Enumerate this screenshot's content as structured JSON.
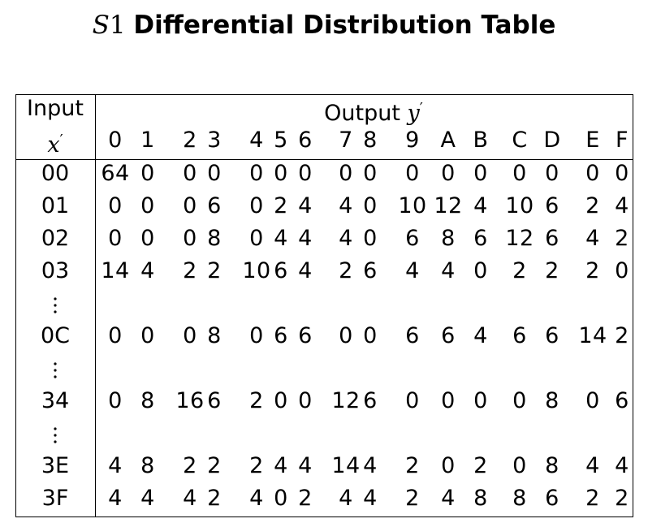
{
  "title": {
    "var": "S",
    "num": "1",
    "text": "Differential Distribution Table"
  },
  "header": {
    "input_label": "Input",
    "input_var": "x",
    "output_label": "Output",
    "output_var": "y",
    "prime": "′",
    "columns": [
      "0",
      "1",
      "2",
      "3",
      "4",
      "5",
      "6",
      "7",
      "8",
      "9",
      "A",
      "B",
      "C",
      "D",
      "E",
      "F"
    ]
  },
  "rows": [
    {
      "label": "00",
      "values": [
        "64",
        "0",
        "0",
        "0",
        "0",
        "0",
        "0",
        "0",
        "0",
        "0",
        "0",
        "0",
        "0",
        "0",
        "0",
        "0"
      ]
    },
    {
      "label": "01",
      "values": [
        "0",
        "0",
        "0",
        "6",
        "0",
        "2",
        "4",
        "4",
        "0",
        "10",
        "12",
        "4",
        "10",
        "6",
        "2",
        "4"
      ]
    },
    {
      "label": "02",
      "values": [
        "0",
        "0",
        "0",
        "8",
        "0",
        "4",
        "4",
        "4",
        "0",
        "6",
        "8",
        "6",
        "12",
        "6",
        "4",
        "2"
      ]
    },
    {
      "label": "03",
      "values": [
        "14",
        "4",
        "2",
        "2",
        "10",
        "6",
        "4",
        "2",
        "6",
        "4",
        "4",
        "0",
        "2",
        "2",
        "2",
        "0"
      ]
    },
    {
      "ellipsis": true
    },
    {
      "label": "0C",
      "values": [
        "0",
        "0",
        "0",
        "8",
        "0",
        "6",
        "6",
        "0",
        "0",
        "6",
        "6",
        "4",
        "6",
        "6",
        "14",
        "2"
      ]
    },
    {
      "ellipsis": true
    },
    {
      "label": "34",
      "values": [
        "0",
        "8",
        "16",
        "6",
        "2",
        "0",
        "0",
        "12",
        "6",
        "0",
        "0",
        "0",
        "0",
        "8",
        "0",
        "6"
      ]
    },
    {
      "ellipsis": true
    },
    {
      "label": "3E",
      "values": [
        "4",
        "8",
        "2",
        "2",
        "2",
        "4",
        "4",
        "14",
        "4",
        "2",
        "0",
        "2",
        "0",
        "8",
        "4",
        "4"
      ]
    },
    {
      "label": "3F",
      "values": [
        "4",
        "4",
        "4",
        "2",
        "4",
        "0",
        "2",
        "4",
        "4",
        "2",
        "4",
        "8",
        "8",
        "6",
        "2",
        "2"
      ]
    }
  ]
}
